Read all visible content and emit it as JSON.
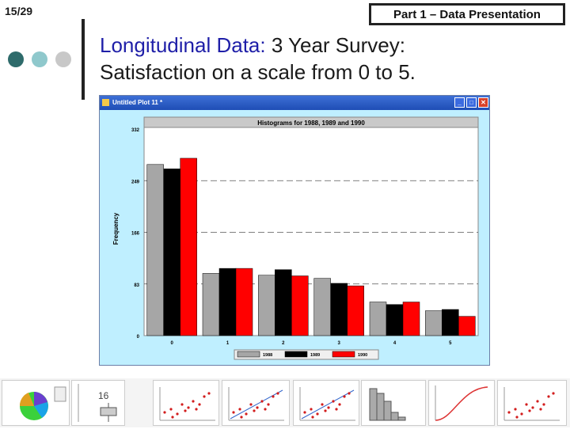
{
  "slide": {
    "number": "15/29",
    "section": "Part 1 – Data Presentation",
    "title_highlight": "Longitudinal Data:",
    "title_rest": " 3 Year Survey:",
    "title_line2": "Satisfaction on a scale from 0 to 5."
  },
  "window": {
    "title": "Untitled Plot 11 *",
    "minimize_label": "_",
    "maximize_label": "□",
    "close_label": "✕"
  },
  "chart_data": {
    "type": "bar",
    "title": "Histograms for 1988, 1989 and 1990",
    "xlabel": "",
    "ylabel": "Frequency",
    "categories": [
      "0",
      "1",
      "2",
      "3",
      "4",
      "5"
    ],
    "y_ticks": [
      "0",
      "83",
      "166",
      "249",
      "332"
    ],
    "ylim": [
      0,
      332
    ],
    "grid": "dashed horizontal at ticks",
    "legend_position": "bottom-center",
    "series": [
      {
        "name": "1988",
        "color": "#a6a6a6",
        "values": [
          275,
          100,
          97,
          92,
          54,
          40
        ]
      },
      {
        "name": "1989",
        "color": "#000000",
        "values": [
          268,
          108,
          106,
          84,
          50,
          42
        ]
      },
      {
        "name": "1990",
        "color": "#ff0000",
        "values": [
          285,
          108,
          96,
          80,
          54,
          31
        ]
      }
    ]
  },
  "thumbnails": {
    "number_label": "16",
    "icons": [
      "pie-chart-thumb",
      "boxplot-thumb",
      "scatter-thumb",
      "probability-plot-thumb",
      "scatter-fit-thumb",
      "histogram-thumb",
      "cdf-thumb",
      "histogram-scatter-thumb"
    ]
  },
  "colors": {
    "dot1": "#2e6b6b",
    "dot2": "#8fc8cc",
    "dot3": "#c8c8c8",
    "plot_bg": "#bfefff"
  }
}
